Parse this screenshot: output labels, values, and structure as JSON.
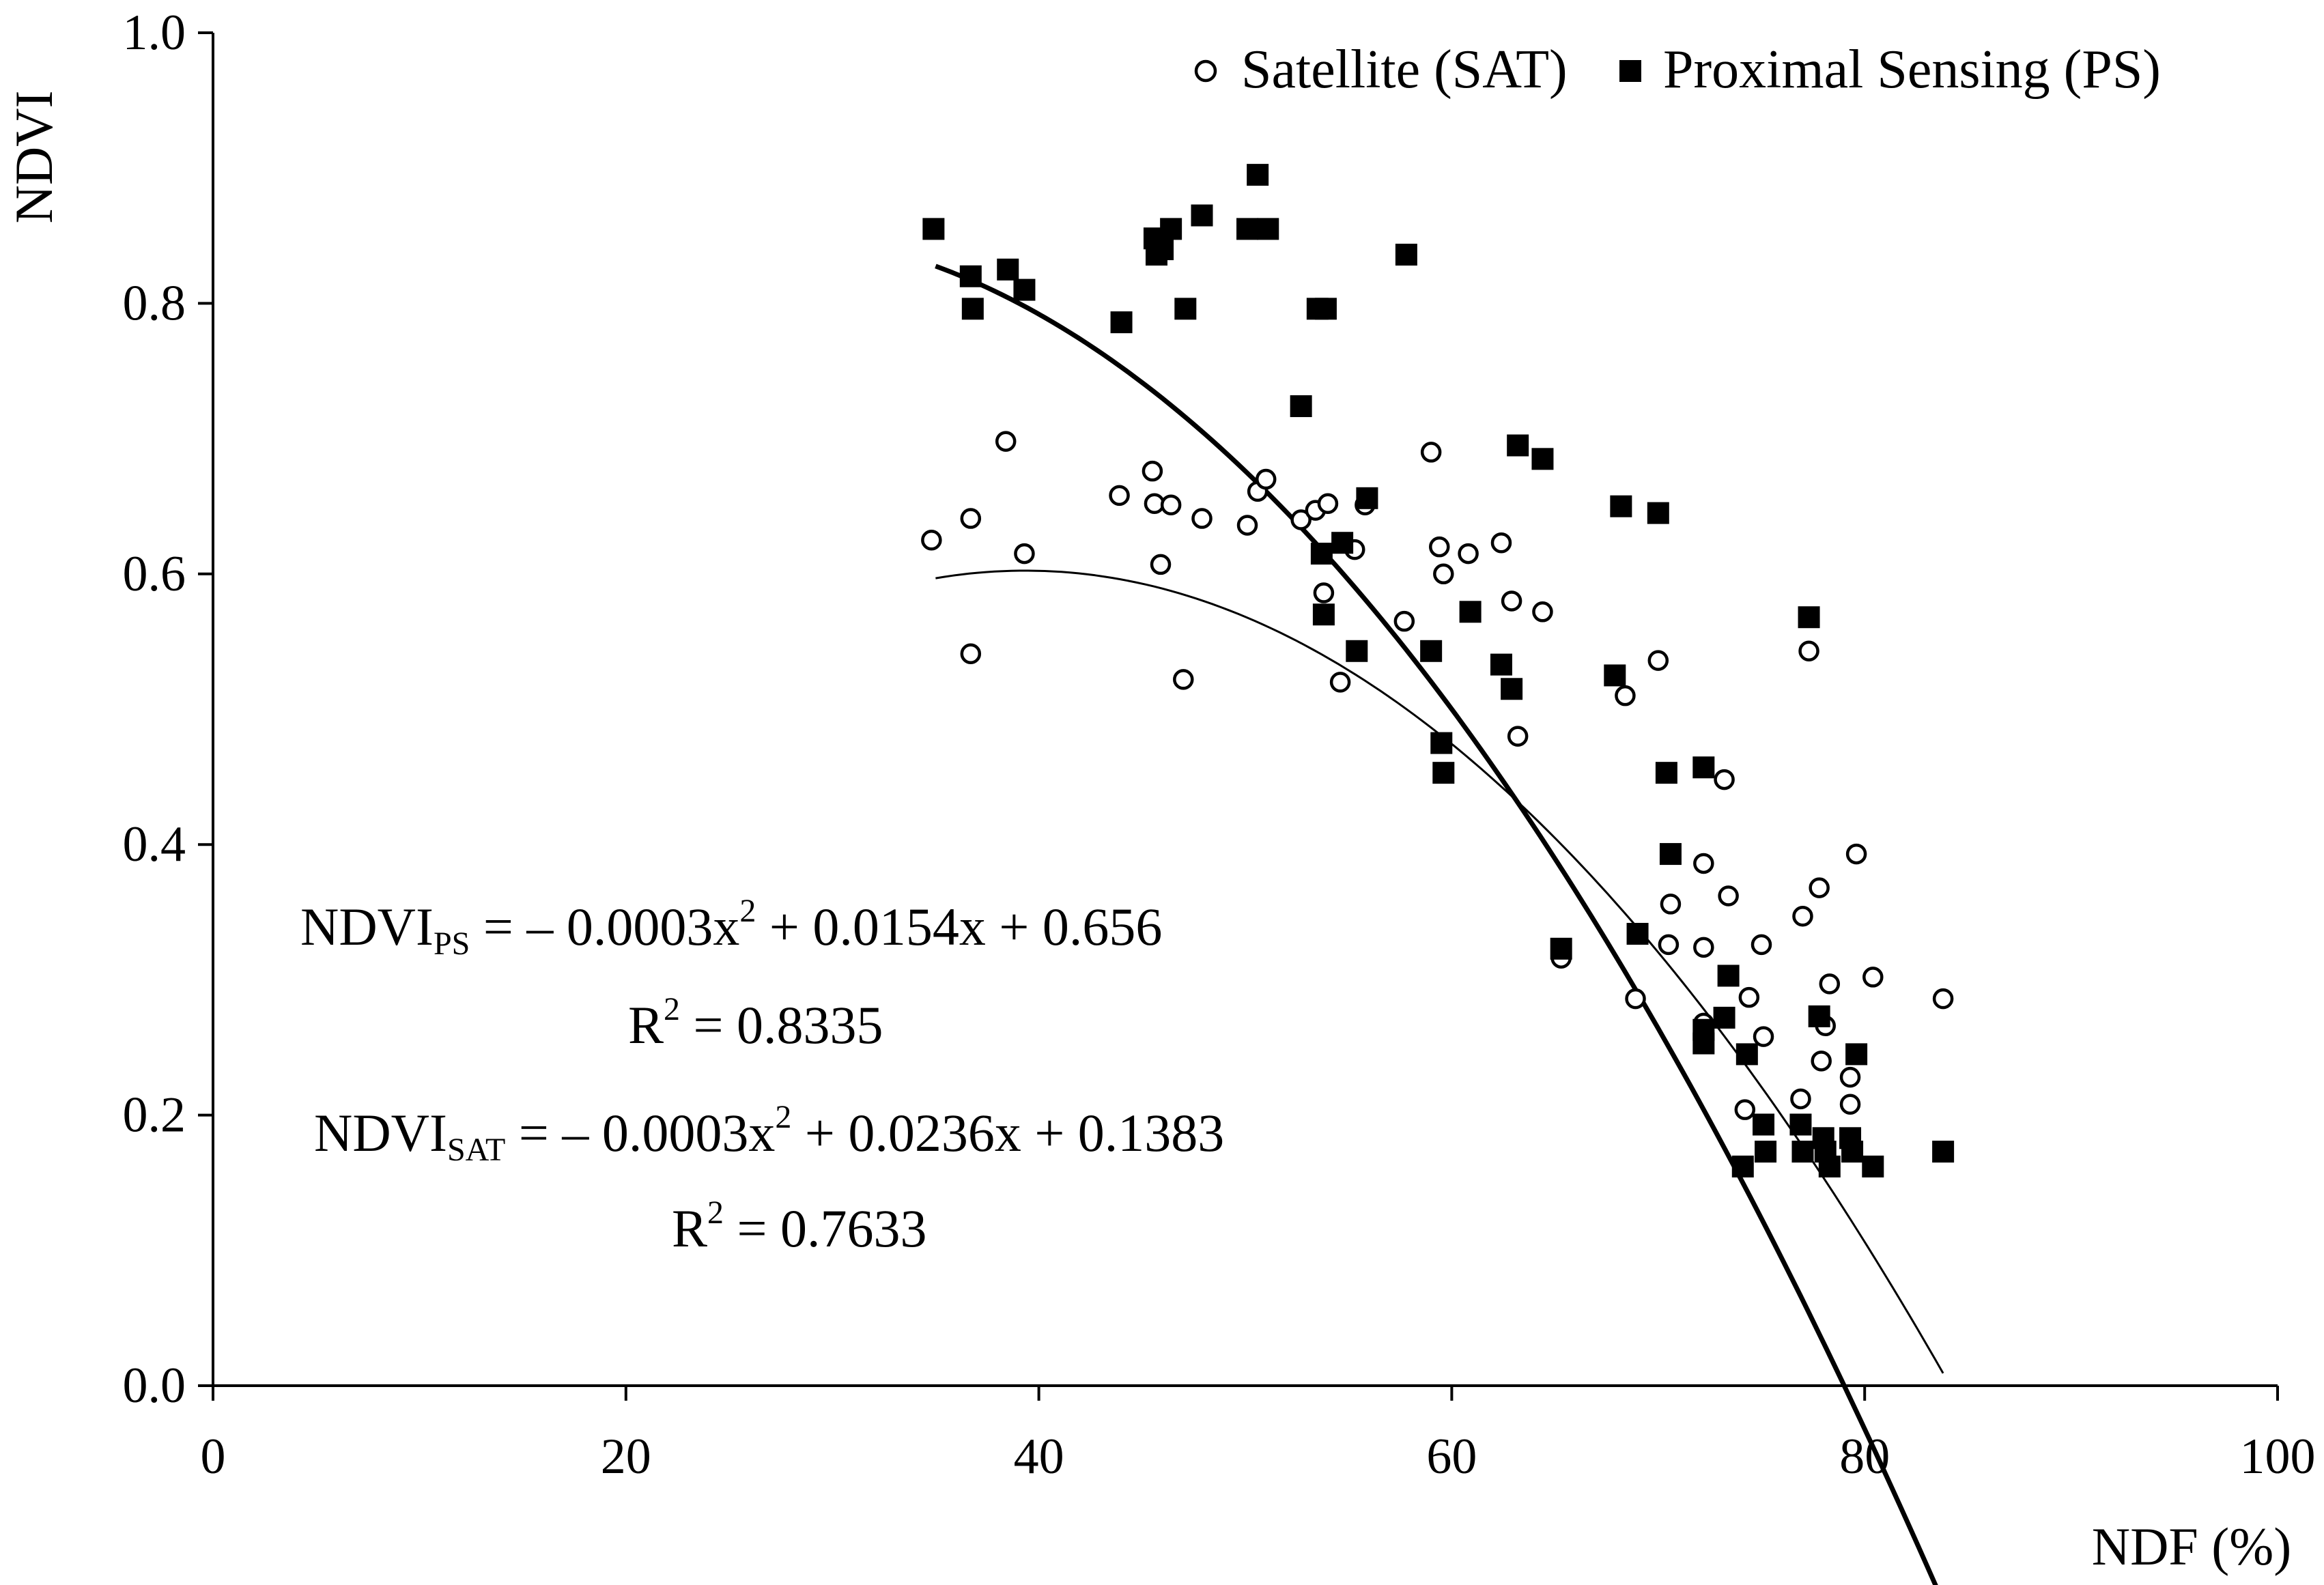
{
  "chart_data": {
    "type": "scatter",
    "title": "",
    "xlabel": "NDF (%)",
    "ylabel": "NDVI",
    "xlim": [
      0,
      100
    ],
    "ylim": [
      0.0,
      1.0
    ],
    "x_ticks": [
      "0",
      "20",
      "40",
      "60",
      "80",
      "100"
    ],
    "y_ticks": [
      "0.0",
      "0.2",
      "0.4",
      "0.6",
      "0.8",
      "1.0"
    ],
    "grid": false,
    "legend_position": "top-right",
    "series": [
      {
        "name": "Satellite (SAT)",
        "marker": "open-circle",
        "points": [
          [
            34.8,
            0.625
          ],
          [
            36.7,
            0.641
          ],
          [
            36.7,
            0.541
          ],
          [
            38.4,
            0.698
          ],
          [
            39.3,
            0.615
          ],
          [
            43.9,
            0.658
          ],
          [
            45.5,
            0.676
          ],
          [
            45.6,
            0.652
          ],
          [
            45.9,
            0.607
          ],
          [
            46.4,
            0.651
          ],
          [
            47.0,
            0.522
          ],
          [
            47.9,
            0.641
          ],
          [
            50.1,
            0.636
          ],
          [
            50.6,
            0.661
          ],
          [
            51.0,
            0.67
          ],
          [
            52.7,
            0.64
          ],
          [
            53.4,
            0.647
          ],
          [
            53.8,
            0.586
          ],
          [
            54.0,
            0.652
          ],
          [
            54.6,
            0.52
          ],
          [
            55.3,
            0.618
          ],
          [
            55.8,
            0.651
          ],
          [
            57.7,
            0.565
          ],
          [
            59.0,
            0.69
          ],
          [
            59.4,
            0.62
          ],
          [
            59.6,
            0.6
          ],
          [
            60.8,
            0.615
          ],
          [
            62.4,
            0.623
          ],
          [
            62.9,
            0.58
          ],
          [
            63.2,
            0.48
          ],
          [
            64.4,
            0.572
          ],
          [
            65.3,
            0.316
          ],
          [
            68.4,
            0.51
          ],
          [
            68.9,
            0.286
          ],
          [
            70.0,
            0.536
          ],
          [
            70.5,
            0.326
          ],
          [
            70.6,
            0.356
          ],
          [
            72.2,
            0.386
          ],
          [
            72.2,
            0.324
          ],
          [
            72.2,
            0.268
          ],
          [
            73.2,
            0.448
          ],
          [
            73.4,
            0.362
          ],
          [
            74.2,
            0.204
          ],
          [
            74.4,
            0.287
          ],
          [
            75.0,
            0.326
          ],
          [
            75.1,
            0.258
          ],
          [
            76.9,
            0.212
          ],
          [
            77.0,
            0.347
          ],
          [
            77.3,
            0.543
          ],
          [
            77.8,
            0.368
          ],
          [
            77.9,
            0.24
          ],
          [
            78.1,
            0.266
          ],
          [
            78.3,
            0.297
          ],
          [
            79.3,
            0.228
          ],
          [
            79.3,
            0.208
          ],
          [
            79.6,
            0.393
          ],
          [
            80.4,
            0.302
          ],
          [
            83.8,
            0.286
          ]
        ],
        "trend": {
          "equation": "- 0.0003x^2 + 0.0236x + 0.1383",
          "r2": 0.7633,
          "x_range": [
            35,
            83.8
          ]
        }
      },
      {
        "name": "Proximal Sensing (PS)",
        "marker": "filled-square",
        "points": [
          [
            34.9,
            0.855
          ],
          [
            36.7,
            0.82
          ],
          [
            36.8,
            0.796
          ],
          [
            38.5,
            0.825
          ],
          [
            39.3,
            0.81
          ],
          [
            44.0,
            0.786
          ],
          [
            45.6,
            0.848
          ],
          [
            45.7,
            0.836
          ],
          [
            46.0,
            0.84
          ],
          [
            46.4,
            0.855
          ],
          [
            47.1,
            0.796
          ],
          [
            47.9,
            0.865
          ],
          [
            50.1,
            0.855
          ],
          [
            50.6,
            0.895
          ],
          [
            51.1,
            0.855
          ],
          [
            52.7,
            0.724
          ],
          [
            53.5,
            0.796
          ],
          [
            53.9,
            0.796
          ],
          [
            53.7,
            0.615
          ],
          [
            53.8,
            0.57
          ],
          [
            54.7,
            0.623
          ],
          [
            55.4,
            0.543
          ],
          [
            55.9,
            0.656
          ],
          [
            57.8,
            0.836
          ],
          [
            59.0,
            0.543
          ],
          [
            59.5,
            0.475
          ],
          [
            59.6,
            0.453
          ],
          [
            60.9,
            0.572
          ],
          [
            62.4,
            0.533
          ],
          [
            62.9,
            0.515
          ],
          [
            63.2,
            0.695
          ],
          [
            64.4,
            0.685
          ],
          [
            65.3,
            0.323
          ],
          [
            67.9,
            0.525
          ],
          [
            68.2,
            0.65
          ],
          [
            69.0,
            0.334
          ],
          [
            70.0,
            0.645
          ],
          [
            70.4,
            0.453
          ],
          [
            70.6,
            0.393
          ],
          [
            72.2,
            0.457
          ],
          [
            72.2,
            0.263
          ],
          [
            72.2,
            0.253
          ],
          [
            73.2,
            0.272
          ],
          [
            73.4,
            0.303
          ],
          [
            74.1,
            0.162
          ],
          [
            74.3,
            0.245
          ],
          [
            75.1,
            0.193
          ],
          [
            75.2,
            0.173
          ],
          [
            76.9,
            0.193
          ],
          [
            77.0,
            0.173
          ],
          [
            77.3,
            0.568
          ],
          [
            77.8,
            0.273
          ],
          [
            78.0,
            0.183
          ],
          [
            78.1,
            0.173
          ],
          [
            78.3,
            0.162
          ],
          [
            79.3,
            0.183
          ],
          [
            79.4,
            0.173
          ],
          [
            79.6,
            0.245
          ],
          [
            80.4,
            0.162
          ],
          [
            83.8,
            0.173
          ]
        ],
        "trend": {
          "equation": "- 0.0003x^2 + 0.0154x + 0.656",
          "r2": 0.8335,
          "x_range": [
            35,
            83.8
          ]
        }
      }
    ]
  },
  "legend": {
    "sat": "Satellite (SAT)",
    "ps": "Proximal Sensing (PS)"
  },
  "annotations": {
    "ps_eq_lhs": "NDVI",
    "ps_eq_sub": "PS",
    "ps_eq_mid": " = – 0.0003x",
    "ps_eq_sup": "2",
    "ps_eq_rhs": " + 0.0154x + 0.656",
    "ps_r2_lhs": "R",
    "ps_r2_sup": "2",
    "ps_r2_rhs": " = 0.8335",
    "sat_eq_lhs": "NDVI",
    "sat_eq_sub": "SAT",
    "sat_eq_mid": " = – 0.0003x",
    "sat_eq_sup": "2",
    "sat_eq_rhs": " + 0.0236x + 0.1383",
    "sat_r2_lhs": "R",
    "sat_r2_sup": "2",
    "sat_r2_rhs": " = 0.7633"
  }
}
